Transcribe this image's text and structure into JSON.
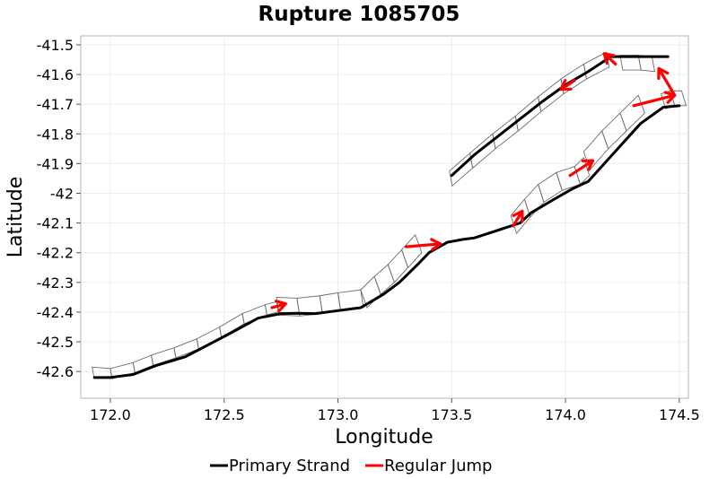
{
  "chart_data": {
    "type": "line",
    "title": "Rupture 1085705",
    "xlabel": "Longitude",
    "ylabel": "Latitude",
    "xlim": [
      171.87,
      174.54
    ],
    "ylim": [
      -42.69,
      -41.47
    ],
    "grid": true,
    "legend_position": "bottom",
    "x_ticks": [
      {
        "value": 172.0,
        "label": "172.0"
      },
      {
        "value": 172.5,
        "label": "172.5"
      },
      {
        "value": 173.0,
        "label": "173.0"
      },
      {
        "value": 173.5,
        "label": "173.5"
      },
      {
        "value": 174.0,
        "label": "174.0"
      },
      {
        "value": 174.5,
        "label": "174.5"
      }
    ],
    "y_ticks": [
      {
        "value": -41.5,
        "label": "-41.5"
      },
      {
        "value": -41.6,
        "label": "-41.6"
      },
      {
        "value": -41.7,
        "label": "-41.7"
      },
      {
        "value": -41.8,
        "label": "-41.8"
      },
      {
        "value": -41.9,
        "label": "-41.9"
      },
      {
        "value": -42.0,
        "label": "-42"
      },
      {
        "value": -42.1,
        "label": "-42.1"
      },
      {
        "value": -42.2,
        "label": "-42.2"
      },
      {
        "value": -42.3,
        "label": "-42.3"
      },
      {
        "value": -42.4,
        "label": "-42.4"
      },
      {
        "value": -42.5,
        "label": "-42.5"
      },
      {
        "value": -42.6,
        "label": "-42.6"
      }
    ],
    "series": [
      {
        "name": "Primary Strand",
        "color": "#000000",
        "segments": [
          [
            [
              171.93,
              -42.62
            ],
            [
              172.0,
              -42.62
            ],
            [
              172.1,
              -42.61
            ],
            [
              172.2,
              -42.58
            ],
            [
              172.33,
              -42.55
            ],
            [
              172.43,
              -42.51
            ],
            [
              172.53,
              -42.47
            ],
            [
              172.65,
              -42.42
            ],
            [
              172.75,
              -42.405
            ],
            [
              172.82,
              -42.404
            ],
            [
              172.9,
              -42.405
            ],
            [
              173.0,
              -42.395
            ],
            [
              173.1,
              -42.385
            ],
            [
              173.2,
              -42.34
            ],
            [
              173.27,
              -42.3
            ],
            [
              173.35,
              -42.24
            ],
            [
              173.4,
              -42.2
            ],
            [
              173.48,
              -42.165
            ],
            [
              173.55,
              -42.155
            ],
            [
              173.6,
              -42.15
            ],
            [
              173.7,
              -42.125
            ],
            [
              173.8,
              -42.1
            ],
            [
              173.85,
              -42.065
            ],
            [
              173.95,
              -42.02
            ],
            [
              174.03,
              -41.985
            ],
            [
              174.1,
              -41.96
            ],
            [
              174.2,
              -41.875
            ],
            [
              174.33,
              -41.765
            ],
            [
              174.43,
              -41.71
            ],
            [
              174.5,
              -41.705
            ]
          ],
          [
            [
              173.5,
              -41.94
            ],
            [
              173.6,
              -41.87
            ],
            [
              173.7,
              -41.81
            ],
            [
              173.8,
              -41.75
            ],
            [
              173.9,
              -41.69
            ],
            [
              174.0,
              -41.635
            ],
            [
              174.1,
              -41.59
            ],
            [
              174.2,
              -41.54
            ],
            [
              174.35,
              -41.54
            ],
            [
              174.45,
              -41.54
            ]
          ]
        ]
      },
      {
        "name": "Regular Jump",
        "color": "#ff0000",
        "jumps": [
          [
            [
              172.71,
              -42.385
            ],
            [
              172.77,
              -42.372
            ]
          ],
          [
            [
              173.3,
              -42.18
            ],
            [
              173.45,
              -42.17
            ]
          ],
          [
            [
              173.77,
              -42.11
            ],
            [
              173.81,
              -42.06
            ]
          ],
          [
            [
              174.02,
              -41.94
            ],
            [
              174.12,
              -41.89
            ]
          ],
          [
            [
              174.3,
              -41.705
            ],
            [
              174.48,
              -41.67
            ]
          ],
          [
            [
              174.48,
              -41.67
            ],
            [
              174.41,
              -41.58
            ]
          ],
          [
            [
              174.22,
              -41.565
            ],
            [
              174.17,
              -41.53
            ]
          ],
          [
            [
              174.04,
              -41.62
            ],
            [
              173.98,
              -41.65
            ]
          ]
        ]
      }
    ],
    "subsections": [
      {
        "trace": [
          [
            171.92,
            -42.585
          ],
          [
            172.0,
            -42.59
          ],
          [
            172.1,
            -42.57
          ],
          [
            172.18,
            -42.545
          ],
          [
            172.28,
            -42.52
          ],
          [
            172.38,
            -42.49
          ],
          [
            172.48,
            -42.45
          ],
          [
            172.58,
            -42.405
          ],
          [
            172.68,
            -42.375
          ],
          [
            172.73,
            -42.365
          ]
        ],
        "depth": [
          0.01,
          0.04
        ],
        "dip_offset": [
          0.008,
          0.034
        ]
      },
      {
        "trace": [
          [
            172.73,
            -42.35
          ],
          [
            172.82,
            -42.353
          ],
          [
            172.92,
            -42.345
          ],
          [
            173.0,
            -42.335
          ],
          [
            173.1,
            -42.325
          ]
        ],
        "depth": [
          0.01,
          0.04
        ],
        "dip_offset": [
          0.012,
          0.06
        ]
      },
      {
        "trace": [
          [
            173.1,
            -42.325
          ],
          [
            173.16,
            -42.28
          ],
          [
            173.22,
            -42.24
          ],
          [
            173.28,
            -42.19
          ],
          [
            173.34,
            -42.14
          ]
        ],
        "depth": [
          0.01,
          0.04
        ],
        "dip_offset": [
          0.028,
          0.06
        ]
      },
      {
        "trace": [
          [
            173.76,
            -42.075
          ],
          [
            173.82,
            -42.02
          ],
          [
            173.88,
            -41.97
          ],
          [
            173.96,
            -41.93
          ],
          [
            174.04,
            -41.91
          ],
          [
            174.08,
            -41.88
          ]
        ],
        "depth": [
          0.01,
          0.04
        ],
        "dip_offset": [
          0.025,
          0.06
        ]
      },
      {
        "trace": [
          [
            174.08,
            -41.86
          ],
          [
            174.16,
            -41.79
          ],
          [
            174.24,
            -41.73
          ],
          [
            174.32,
            -41.67
          ]
        ],
        "depth": [
          0.01,
          0.04
        ],
        "dip_offset": [
          0.028,
          0.06
        ]
      },
      {
        "trace": [
          [
            174.42,
            -41.665
          ],
          [
            174.46,
            -41.655
          ],
          [
            174.51,
            -41.655
          ]
        ],
        "depth": [
          0.01,
          0.04
        ],
        "dip_offset": [
          0.02,
          0.05
        ]
      },
      {
        "trace": [
          [
            173.49,
            -41.925
          ],
          [
            173.58,
            -41.865
          ],
          [
            173.68,
            -41.8
          ],
          [
            173.78,
            -41.74
          ],
          [
            173.88,
            -41.675
          ],
          [
            173.98,
            -41.615
          ],
          [
            174.08,
            -41.565
          ],
          [
            174.18,
            -41.525
          ]
        ],
        "depth": [
          0.01,
          0.04
        ],
        "dip_offset": [
          0.012,
          0.05
        ]
      },
      {
        "trace": [
          [
            174.24,
            -41.535
          ],
          [
            174.32,
            -41.535
          ],
          [
            174.38,
            -41.54
          ]
        ],
        "depth": [
          0.01,
          0.04
        ],
        "dip_offset": [
          0.012,
          0.05
        ]
      }
    ]
  },
  "legend": {
    "items": [
      {
        "label": "Primary Strand",
        "color": "#000000"
      },
      {
        "label": "Regular Jump",
        "color": "#ff0000"
      }
    ]
  }
}
